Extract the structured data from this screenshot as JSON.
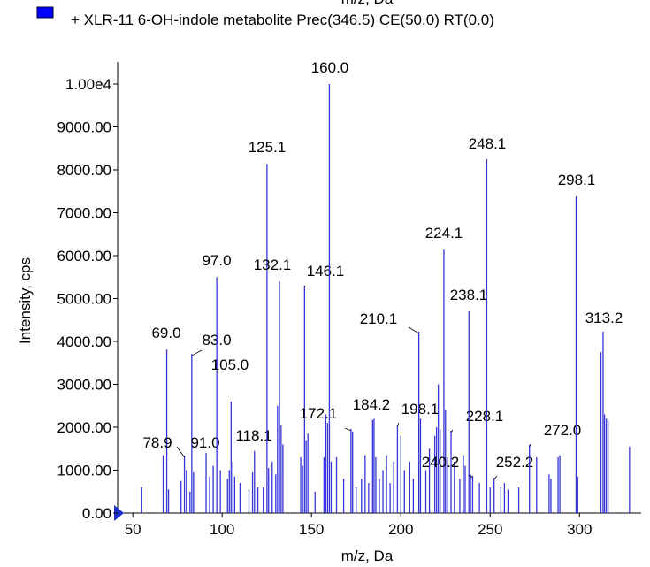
{
  "chart_data": {
    "type": "bar",
    "top_cut_label": "m/z, Da",
    "legend": "+ XLR-11 6-OH-indole metabolite Prec(346.5) CE(50.0) RT(0.0)",
    "legend_color": "#0000ff",
    "color": "#3434d8",
    "xlabel": "m/z, Da",
    "ylabel": "Intensity, cps",
    "xlim": [
      41.5,
      335
    ],
    "ylim": [
      0,
      10000
    ],
    "xticks": [
      50,
      100,
      150,
      200,
      250,
      300
    ],
    "yticks": [
      {
        "value": 0,
        "label": "0.00"
      },
      {
        "value": 1000,
        "label": "1000.00"
      },
      {
        "value": 2000,
        "label": "2000.00"
      },
      {
        "value": 3000,
        "label": "3000.00"
      },
      {
        "value": 4000,
        "label": "4000.00"
      },
      {
        "value": 5000,
        "label": "5000.00"
      },
      {
        "value": 6000,
        "label": "6000.00"
      },
      {
        "value": 7000,
        "label": "7000.00"
      },
      {
        "value": 8000,
        "label": "8000.00"
      },
      {
        "value": 9000,
        "label": "9000.00"
      },
      {
        "value": 10000,
        "label": "1.00e4"
      }
    ],
    "x": [
      55,
      67,
      69.0,
      70,
      77,
      78.9,
      80,
      82,
      83.0,
      84,
      91.0,
      93,
      95,
      97.0,
      99,
      103,
      104,
      105.0,
      106,
      107,
      110,
      115,
      117,
      118.1,
      120,
      123,
      125.1,
      126,
      128,
      130,
      131,
      132.1,
      133,
      134,
      144,
      145,
      146.1,
      147,
      148,
      152,
      157,
      158,
      159,
      160.0,
      161,
      164,
      168,
      172.1,
      173,
      175,
      178,
      180,
      182,
      184.2,
      185,
      186,
      188,
      190,
      192,
      194,
      196,
      198.1,
      200,
      202,
      205,
      207,
      210.1,
      211,
      214,
      216,
      219,
      220,
      221,
      222,
      224.1,
      225,
      226,
      228.1,
      230,
      233,
      235,
      236,
      238.1,
      239,
      240.2,
      244,
      248.1,
      250,
      252.2,
      256,
      258,
      260,
      266,
      272.0,
      276,
      283,
      284,
      288,
      289,
      298.1,
      299,
      312,
      313.2,
      314,
      315,
      316,
      328
    ],
    "values": [
      600,
      1350,
      3810,
      550,
      750,
      1340,
      1000,
      500,
      3710,
      950,
      1400,
      850,
      1100,
      5500,
      1000,
      800,
      1000,
      2600,
      1200,
      850,
      700,
      550,
      950,
      1450,
      600,
      600,
      8140,
      1050,
      1200,
      900,
      2500,
      5400,
      2050,
      1600,
      1300,
      1100,
      5300,
      1700,
      1850,
      500,
      1300,
      2300,
      2100,
      10000,
      1200,
      1300,
      800,
      1960,
      1900,
      600,
      800,
      1350,
      700,
      2170,
      2200,
      1300,
      800,
      1000,
      1350,
      700,
      1200,
      2060,
      1800,
      1000,
      1200,
      800,
      4230,
      2200,
      1000,
      1500,
      1800,
      2000,
      3000,
      1950,
      6140,
      2400,
      1300,
      1920,
      1200,
      800,
      1350,
      1100,
      4700,
      900,
      870,
      700,
      8250,
      600,
      820,
      600,
      700,
      550,
      600,
      1590,
      1300,
      900,
      800,
      1300,
      1350,
      7380,
      850,
      3750,
      4230,
      2300,
      2200,
      2150,
      1550
    ],
    "peak_labels": [
      null,
      null,
      "69.0",
      null,
      null,
      "78.9",
      null,
      null,
      "83.0",
      null,
      "91.0",
      null,
      null,
      "97.0",
      null,
      null,
      null,
      "105.0",
      null,
      null,
      null,
      null,
      null,
      "118.1",
      null,
      null,
      "125.1",
      null,
      null,
      null,
      null,
      "132.1",
      null,
      null,
      null,
      null,
      "146.1",
      null,
      null,
      null,
      null,
      null,
      null,
      "160.0",
      null,
      null,
      null,
      "172.1",
      null,
      null,
      null,
      null,
      null,
      "184.2",
      null,
      null,
      null,
      null,
      null,
      null,
      null,
      "198.1",
      null,
      null,
      null,
      null,
      "210.1",
      null,
      null,
      null,
      null,
      null,
      null,
      null,
      "224.1",
      null,
      null,
      "228.1",
      null,
      null,
      null,
      null,
      "238.1",
      null,
      "240.2",
      null,
      "248.1",
      null,
      "252.2",
      null,
      null,
      null,
      null,
      "272.0",
      null,
      null,
      null,
      null,
      null,
      "298.1",
      null,
      null,
      "313.2",
      null,
      null,
      null,
      null
    ]
  }
}
